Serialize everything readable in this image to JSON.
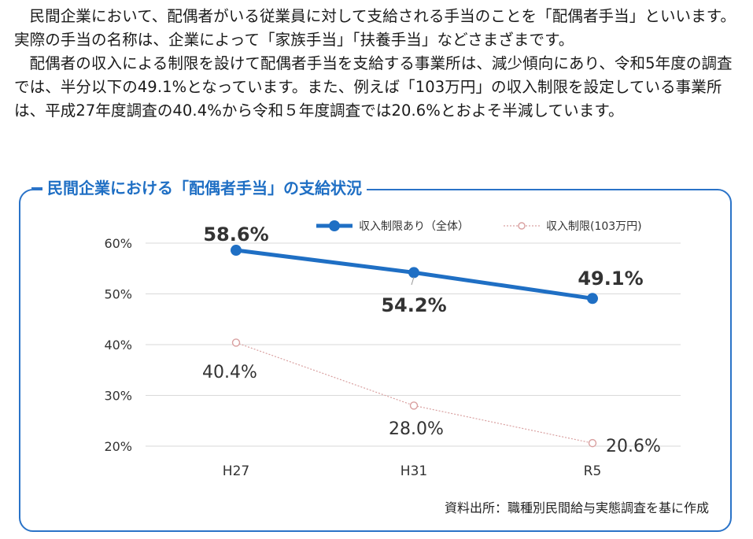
{
  "intro": {
    "paragraph1": "民間企業において、配偶者がいる従業員に対して支給される手当のことを「配偶者手当」といいます。実際の手当の名称は、企業によって「家族手当」「扶養手当」などさまざまです。",
    "paragraph2": "配偶者の収入による制限を設けて配偶者手当を支給する事業所は、減少傾向にあり、令和5年度の調査では、半分以下の49.1%となっています。また、例えば「103万円」の収入制限を設定している事業所は、平成27年度調査の40.4%から令和５年度調査では20.6%とおよそ半減しています。"
  },
  "panel": {
    "title": "民間企業における「配偶者手当」の支給状況",
    "source": "資料出所：職種別民間給与実態調査を基に作成"
  },
  "colors": {
    "accent": "#1f6fc4",
    "series1": "#1f6fc4",
    "series2": "#d9a0a0",
    "grid": "#d9d9d9"
  },
  "chart_data": {
    "type": "line",
    "categories": [
      "H27",
      "H31",
      "R5"
    ],
    "series": [
      {
        "name": "収入制限あり（全体）",
        "values": [
          58.6,
          54.2,
          49.1
        ],
        "labels": [
          "58.6%",
          "54.2%",
          "49.1%"
        ]
      },
      {
        "name": "収入制限(103万円)",
        "values": [
          40.4,
          28.0,
          20.6
        ],
        "labels": [
          "40.4%",
          "28.0%",
          "20.6%"
        ]
      }
    ],
    "yticks": [
      "20%",
      "30%",
      "40%",
      "50%",
      "60%"
    ],
    "ylim": [
      20,
      60
    ],
    "grid": true,
    "legend": "top"
  }
}
